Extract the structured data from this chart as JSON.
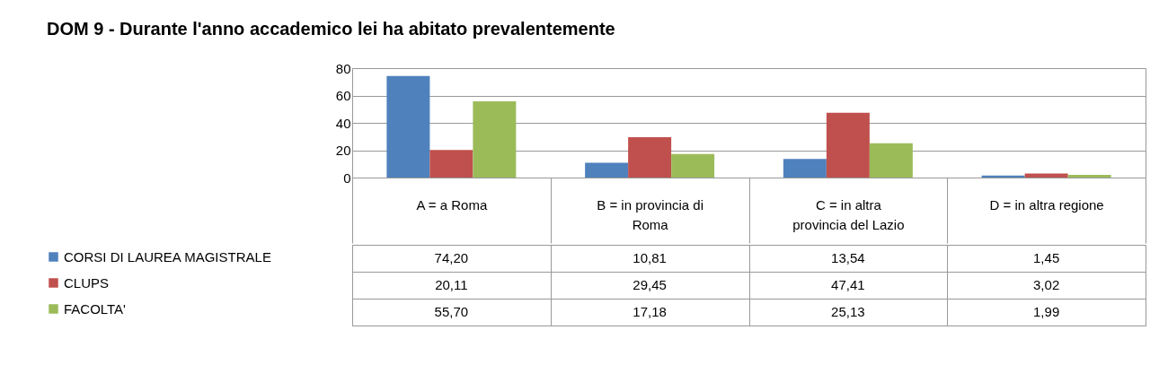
{
  "chart_data": {
    "type": "bar",
    "title": "DOM 9 - Durante l'anno accademico lei ha abitato prevalentemente",
    "categories": [
      "A = a Roma",
      "B = in provincia di Roma",
      "C = in altra provincia del Lazio",
      "D = in altra regione"
    ],
    "series": [
      {
        "name": "CORSI DI LAUREA MAGISTRALE",
        "color": "#4f81bd",
        "values": [
          74.2,
          10.81,
          13.54,
          1.45
        ],
        "value_labels": [
          "74,20",
          "10,81",
          "13,54",
          "1,45"
        ]
      },
      {
        "name": "CLUPS",
        "color": "#c0504d",
        "values": [
          20.11,
          29.45,
          47.41,
          3.02
        ],
        "value_labels": [
          "20,11",
          "29,45",
          "47,41",
          "3,02"
        ]
      },
      {
        "name": "FACOLTA'",
        "color": "#9bbb59",
        "values": [
          55.7,
          17.18,
          25.13,
          1.99
        ],
        "value_labels": [
          "55,70",
          "17,18",
          "25,13",
          "1,99"
        ]
      }
    ],
    "ylim": [
      0,
      80
    ],
    "yticks": [
      0,
      20,
      40,
      60,
      80
    ],
    "grid": "y",
    "legend": "bottom left"
  }
}
